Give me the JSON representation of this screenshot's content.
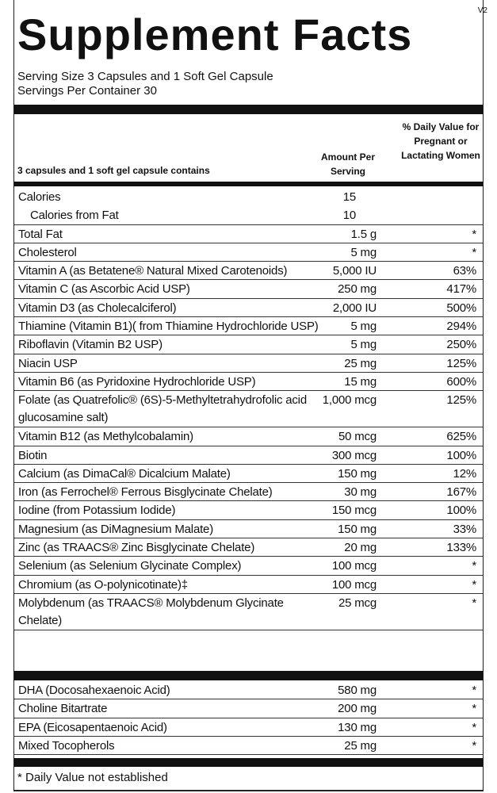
{
  "version": "V2",
  "title": "Supplement Facts",
  "serving_size": "Serving Size  3 Capsules and 1 Soft Gel Capsule",
  "servings_per_container": "Servings Per Container  30",
  "header": {
    "contains": "3 capsules and 1 soft gel capsule contains",
    "amount": "Amount Per Serving",
    "daily_value": "% Daily Value for Pregnant or Lactating Women"
  },
  "rows": [
    {
      "name": "Calories",
      "amount": "15"
    },
    {
      "name": "Calories from Fat",
      "amount": "10"
    },
    {
      "name": "Total Fat",
      "amount": "1.5 g",
      "daily_value": "*"
    },
    {
      "name": "Cholesterol",
      "amount": "5 mg",
      "daily_value": "*"
    },
    {
      "name": "Vitamin A (as Betatene® Natural Mixed Carotenoids)",
      "amount": "5,000 IU",
      "daily_value": "63%"
    },
    {
      "name": "Vitamin C (as Ascorbic Acid USP)",
      "amount": "250 mg",
      "daily_value": "417%"
    },
    {
      "name": "Vitamin D3 (as Cholecalciferol)",
      "amount": "2,000 IU",
      "daily_value": "500%"
    },
    {
      "name": "Thiamine (Vitamin B1)( from Thiamine Hydrochloride USP)",
      "amount": "5 mg",
      "daily_value": "294%"
    },
    {
      "name": "Riboflavin (Vitamin B2 USP)",
      "amount": "5 mg",
      "daily_value": "250%"
    },
    {
      "name": "Niacin USP",
      "amount": "25 mg",
      "daily_value": "125%"
    },
    {
      "name": "Vitamin B6 (as Pyridoxine Hydrochloride USP)",
      "amount": "15 mg",
      "daily_value": "600%"
    },
    {
      "name": "Folate (as Quatrefolic® (6S)-5-Methyltetrahydrofolic acid glucosamine salt)",
      "amount": "1,000 mcg",
      "daily_value": "125%"
    },
    {
      "name": "Vitamin B12 (as Methylcobalamin)",
      "amount": "50 mcg",
      "daily_value": "625%"
    },
    {
      "name": "Biotin",
      "amount": "300 mcg",
      "daily_value": "100%"
    },
    {
      "name": "Calcium (as DimaCal® Dicalcium Malate)",
      "amount": "150 mg",
      "daily_value": "12%"
    },
    {
      "name": "Iron (as Ferrochel® Ferrous Bisglycinate Chelate)",
      "amount": "30 mg",
      "daily_value": "167%"
    },
    {
      "name": "Iodine (from Potassium Iodide)",
      "amount": "150 mcg",
      "daily_value": "100%"
    },
    {
      "name": "Magnesium (as DiMagnesium Malate)",
      "amount": "150 mg",
      "daily_value": "33%"
    },
    {
      "name": "Zinc (as TRAACS® Zinc Bisglycinate Chelate)",
      "amount": "20 mg",
      "daily_value": "133%"
    },
    {
      "name": "Selenium (as Selenium Glycinate Complex)",
      "amount": "100 mcg",
      "daily_value": "*"
    },
    {
      "name": "Chromium (as O-polynicotinate)‡",
      "amount": "100 mcg",
      "daily_value": "*"
    },
    {
      "name": "Molybdenum (as TRAACS® Molybdenum Glycinate Chelate)",
      "amount": "25 mcg",
      "daily_value": "*"
    }
  ],
  "rows2": [
    {
      "name": "DHA (Docosahexaenoic Acid)",
      "amount": "580 mg",
      "daily_value": "*"
    },
    {
      "name": "Choline Bitartrate",
      "amount": "200 mg",
      "daily_value": "*"
    },
    {
      "name": "EPA (Eicosapentaenoic Acid)",
      "amount": "130 mg",
      "daily_value": "*"
    },
    {
      "name": "Mixed Tocopherols",
      "amount": "25 mg",
      "daily_value": "*"
    }
  ],
  "footnote": "* Daily Value not established"
}
